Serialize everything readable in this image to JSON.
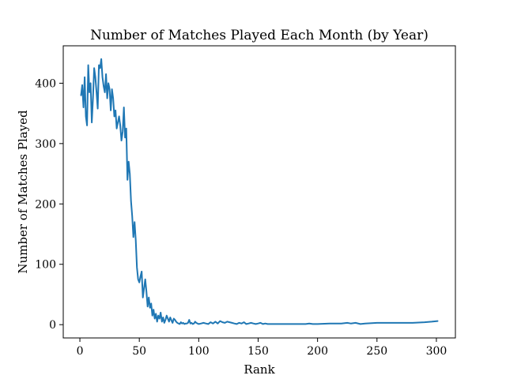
{
  "chart_data": {
    "type": "line",
    "title": "Number of Matches Played Each Month (by Year)",
    "xlabel": "Rank",
    "ylabel": "Number of Matches Played",
    "xlim": [
      -14,
      316
    ],
    "ylim": [
      -22,
      462
    ],
    "x_ticks": [
      0,
      50,
      100,
      150,
      200,
      250,
      300
    ],
    "y_ticks": [
      0,
      100,
      200,
      300,
      400
    ],
    "x_tick_labels": [
      "0",
      "50",
      "100",
      "150",
      "200",
      "250",
      "300"
    ],
    "y_tick_labels": [
      "0",
      "100",
      "200",
      "300",
      "400"
    ],
    "grid": false,
    "legend": "none",
    "color": "#1f77b4",
    "series": [
      {
        "x": [
          1,
          2,
          3,
          4,
          5,
          6,
          7,
          8,
          9,
          10,
          11,
          12,
          13,
          14,
          15,
          16,
          17,
          18,
          19,
          20,
          21,
          22,
          23,
          24,
          25,
          26,
          27,
          28,
          29,
          30,
          31,
          32,
          33,
          34,
          35,
          36,
          37,
          38,
          39,
          40,
          41,
          42,
          43,
          44,
          45,
          46,
          47,
          48,
          49,
          50,
          51,
          52,
          53,
          54,
          55,
          56,
          57,
          58,
          59,
          60,
          61,
          62,
          63,
          64,
          65,
          66,
          67,
          68,
          69,
          70,
          71,
          72,
          73,
          74,
          75,
          76,
          77,
          78,
          79,
          80,
          81,
          82,
          83,
          84,
          85,
          86,
          87,
          88,
          89,
          90,
          91,
          92,
          93,
          94,
          95,
          96,
          97,
          98,
          99,
          100,
          102,
          104,
          106,
          108,
          110,
          112,
          114,
          116,
          118,
          120,
          122,
          124,
          126,
          128,
          130,
          132,
          134,
          136,
          138,
          140,
          142,
          144,
          146,
          148,
          150,
          152,
          154,
          156,
          158,
          160,
          170,
          180,
          190,
          193,
          196,
          200,
          210,
          220,
          225,
          228,
          232,
          236,
          240,
          250,
          260,
          270,
          280,
          290,
          296,
          301
        ],
        "y": [
          380,
          397,
          360,
          410,
          345,
          330,
          430,
          385,
          400,
          335,
          375,
          425,
          410,
          385,
          358,
          430,
          425,
          440,
          410,
          395,
          385,
          415,
          375,
          400,
          390,
          355,
          390,
          375,
          345,
          355,
          325,
          335,
          345,
          330,
          305,
          320,
          360,
          310,
          325,
          240,
          270,
          250,
          205,
          180,
          145,
          170,
          140,
          95,
          75,
          70,
          80,
          88,
          45,
          60,
          75,
          55,
          30,
          45,
          28,
          35,
          15,
          25,
          10,
          18,
          5,
          15,
          10,
          20,
          5,
          12,
          3,
          8,
          15,
          10,
          5,
          12,
          7,
          3,
          10,
          8,
          5,
          3,
          2,
          1,
          4,
          2,
          3,
          1,
          2,
          2,
          3,
          8,
          2,
          3,
          1,
          2,
          5,
          3,
          2,
          1,
          2,
          3,
          2,
          1,
          4,
          2,
          5,
          2,
          6,
          4,
          3,
          5,
          4,
          3,
          2,
          1,
          3,
          2,
          4,
          1,
          2,
          3,
          2,
          1,
          2,
          3,
          1,
          2,
          1,
          1,
          1,
          1,
          1,
          2,
          1,
          1,
          2,
          2,
          3,
          2,
          3,
          1,
          2,
          3,
          3,
          3,
          3,
          4,
          5,
          6
        ]
      }
    ]
  }
}
